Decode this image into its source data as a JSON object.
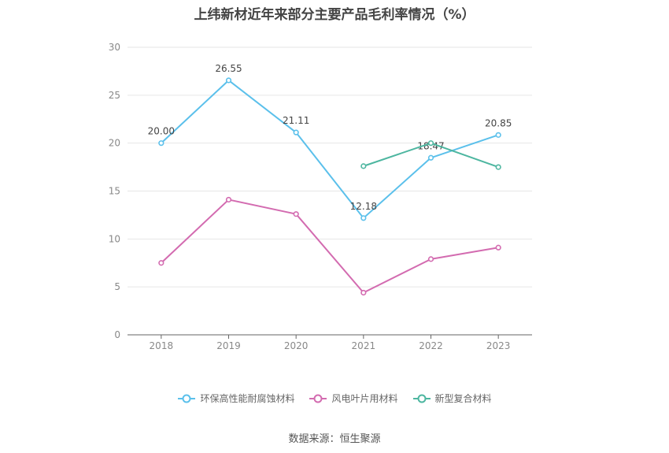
{
  "chart_data": {
    "type": "line",
    "title": "上纬新材近年来部分主要产品毛利率情况（%）",
    "categories": [
      "2018",
      "2019",
      "2020",
      "2021",
      "2022",
      "2023"
    ],
    "ylim": [
      0,
      30
    ],
    "yticks": [
      0,
      5,
      10,
      15,
      20,
      25,
      30
    ],
    "grid": true,
    "legend_position": "bottom",
    "series": [
      {
        "name": "环保高性能耐腐蚀材料",
        "color": "#5bc0eb",
        "values": [
          20.0,
          26.55,
          21.11,
          12.18,
          18.47,
          20.85
        ],
        "labels": [
          "20.00",
          "26.55",
          "21.11",
          "12.18",
          "18.47",
          "20.85"
        ]
      },
      {
        "name": "风电叶片用材料",
        "color": "#d36bb0",
        "values": [
          7.5,
          14.1,
          12.6,
          4.4,
          7.9,
          9.1
        ],
        "labels": []
      },
      {
        "name": "新型复合材料",
        "color": "#4db6a0",
        "values": [
          null,
          null,
          null,
          17.6,
          20.0,
          17.5
        ],
        "labels": []
      }
    ],
    "source": "数据来源：恒生聚源"
  }
}
